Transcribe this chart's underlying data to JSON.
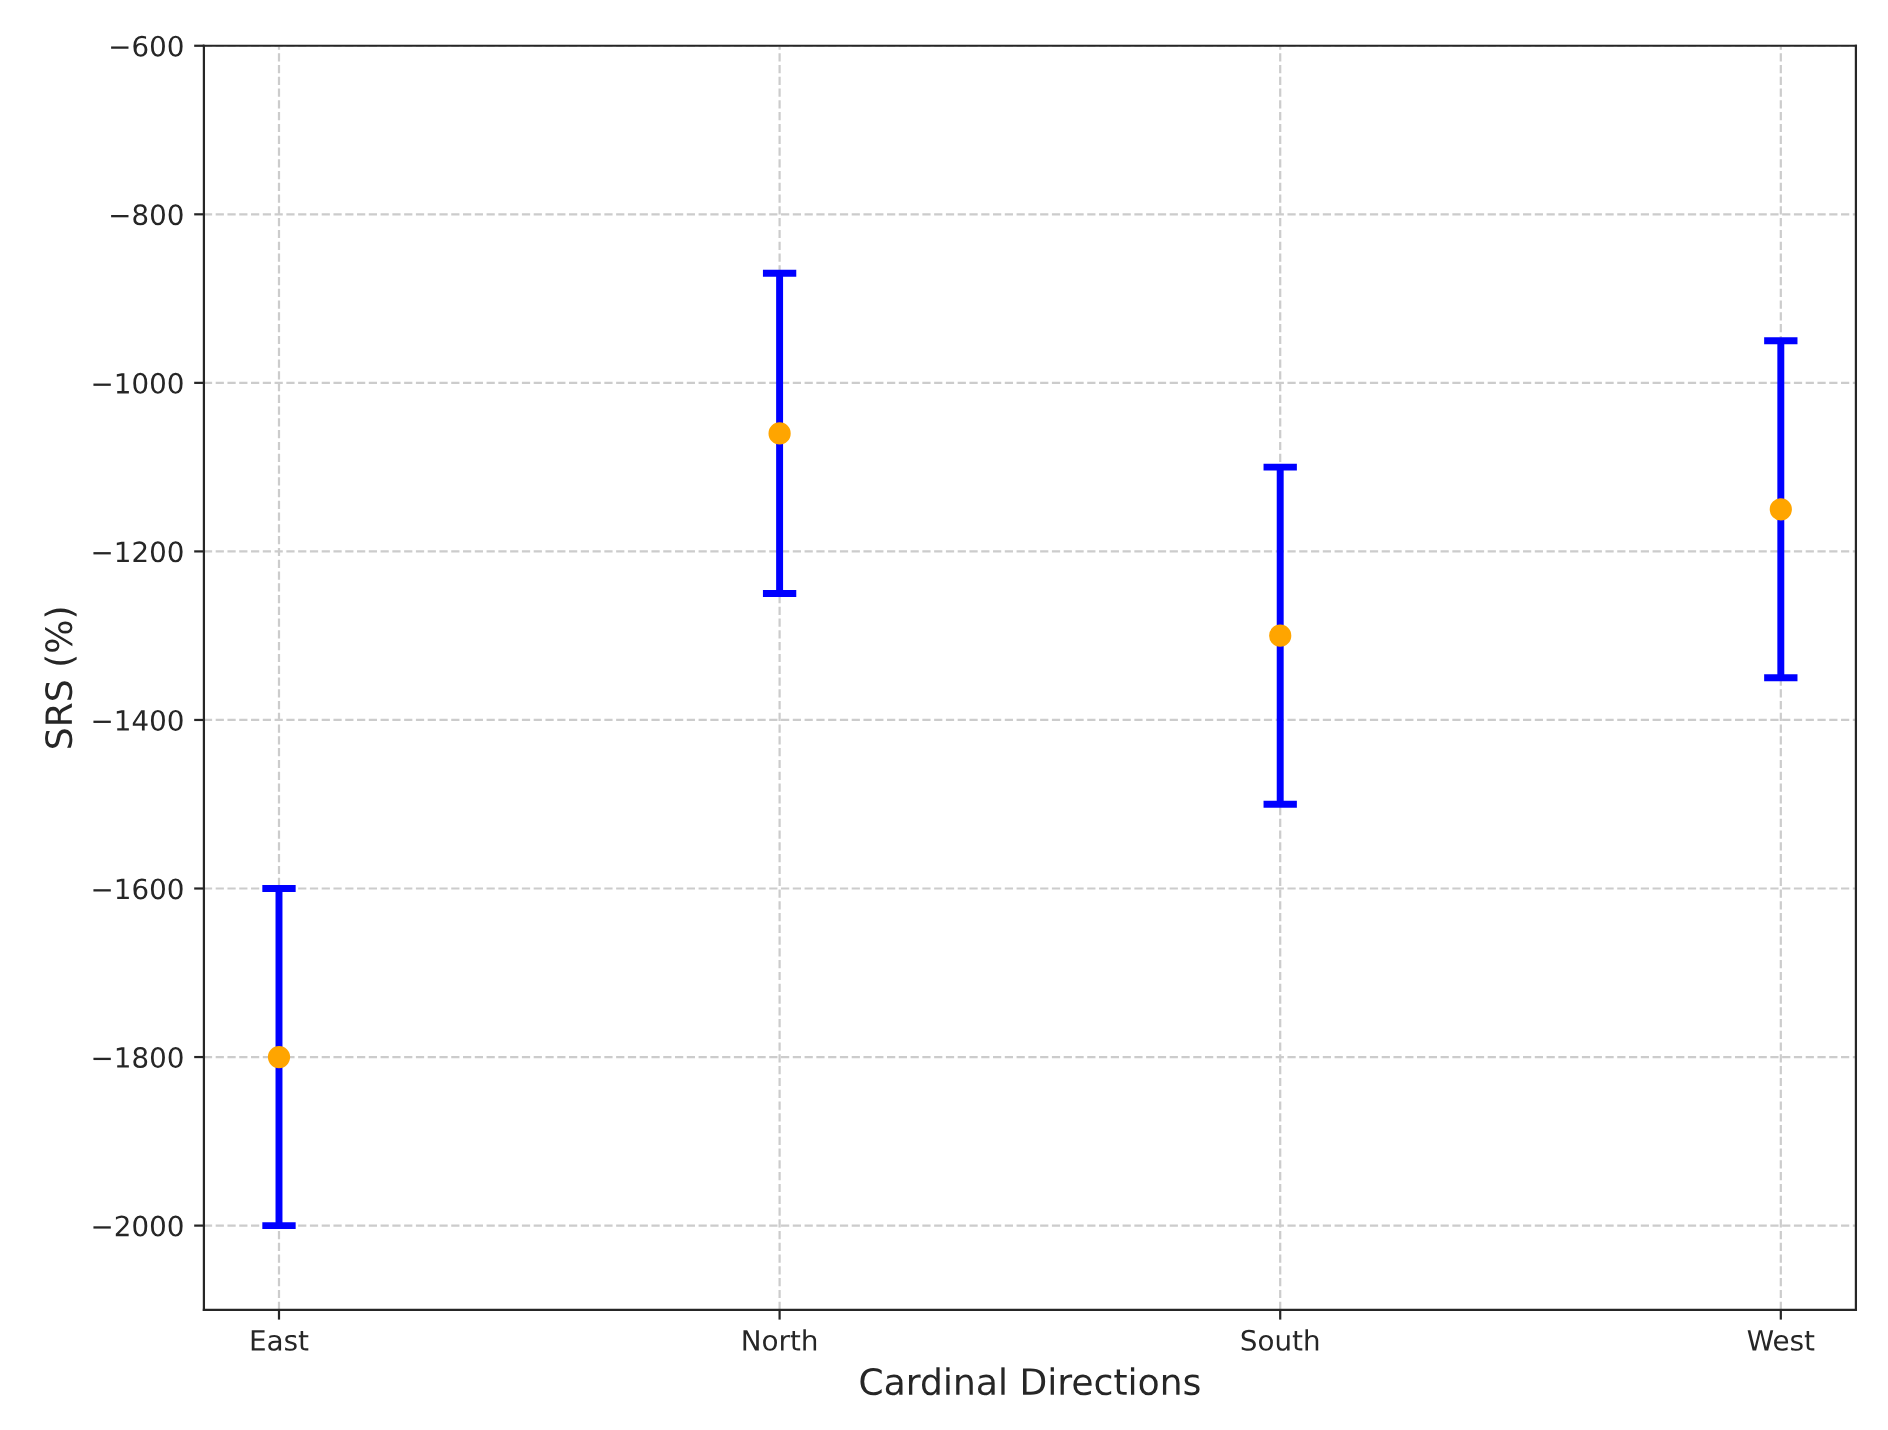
{
  "chart_data": {
    "type": "scatter",
    "xlabel": "Cardinal Directions",
    "ylabel": "SRS (%)",
    "categories": [
      "East",
      "North",
      "South",
      "West"
    ],
    "series": [
      {
        "color": "#ffa500",
        "values": [
          -1800,
          -1060,
          -1300,
          -1150
        ],
        "errors": [
          200,
          190,
          200,
          200
        ]
      }
    ],
    "ylim": [
      -2100,
      -600
    ],
    "yticks": [
      {
        "value": -2000,
        "label": "−2000"
      },
      {
        "value": -1800,
        "label": "−1800"
      },
      {
        "value": -1600,
        "label": "−1600"
      },
      {
        "value": -1400,
        "label": "−1400"
      },
      {
        "value": -1200,
        "label": "−1200"
      },
      {
        "value": -1000,
        "label": "−1000"
      },
      {
        "value": -800,
        "label": "−800"
      },
      {
        "value": -600,
        "label": "−600"
      }
    ],
    "grid": true,
    "marker": "circle",
    "legend": false
  }
}
